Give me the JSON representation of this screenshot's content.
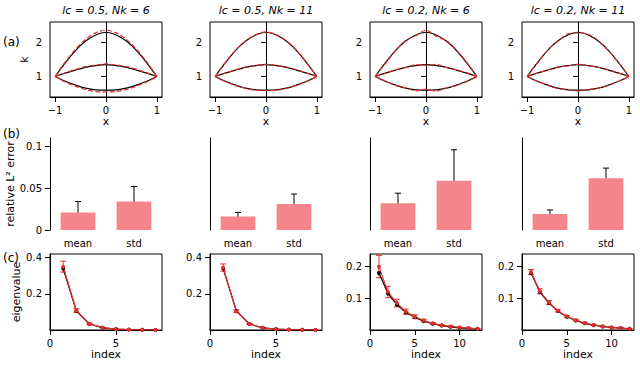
{
  "chart_data": [
    {
      "type": "line",
      "title": "lc = 0.5, Nk = 6",
      "annotations": [
        "(a)"
      ],
      "x_label": "x",
      "y_label": "k",
      "x": [
        -1,
        -0.8,
        -0.6,
        -0.4,
        -0.2,
        0,
        0.2,
        0.4,
        0.6,
        0.8,
        1
      ],
      "xlim": [
        -1.1,
        1.1
      ],
      "xticks": [
        {
          "value": -1,
          "label": "−1"
        },
        0,
        1
      ],
      "ylim": [
        0.4,
        2.6
      ],
      "yticks": [
        1,
        2
      ],
      "series": [
        {
          "color": "#000000",
          "line_style": "solid",
          "marker": "none",
          "values": [
            1,
            1.4,
            1.76,
            2.04,
            2.22,
            2.3,
            2.22,
            2.04,
            1.76,
            1.4,
            1
          ]
        },
        {
          "color": "#000000",
          "line_style": "solid",
          "marker": "none",
          "values": [
            1,
            1.1,
            1.19,
            1.27,
            1.32,
            1.35,
            1.32,
            1.27,
            1.19,
            1.1,
            1
          ]
        },
        {
          "color": "#000000",
          "line_style": "solid",
          "marker": "none",
          "values": [
            1,
            0.86,
            0.75,
            0.66,
            0.61,
            0.6,
            0.61,
            0.66,
            0.75,
            0.86,
            1
          ]
        },
        {
          "color": "#e6302b",
          "line_style": "dashed",
          "marker": "none",
          "values": [
            1,
            1.43,
            1.8,
            2.09,
            2.28,
            2.36,
            2.28,
            2.09,
            1.8,
            1.43,
            1
          ]
        },
        {
          "color": "#e6302b",
          "line_style": "dashed",
          "marker": "none",
          "values": [
            1,
            1.11,
            1.21,
            1.29,
            1.34,
            1.37,
            1.34,
            1.29,
            1.21,
            1.11,
            1
          ]
        },
        {
          "color": "#e6302b",
          "line_style": "dashed",
          "marker": "none",
          "values": [
            1,
            0.84,
            0.72,
            0.62,
            0.56,
            0.55,
            0.56,
            0.62,
            0.72,
            0.84,
            1
          ]
        }
      ]
    },
    {
      "type": "line",
      "title": "lc = 0.5, Nk = 11",
      "x_label": "x",
      "x": [
        -1,
        -0.8,
        -0.6,
        -0.4,
        -0.2,
        0,
        0.2,
        0.4,
        0.6,
        0.8,
        1
      ],
      "xlim": [
        -1.1,
        1.1
      ],
      "xticks": [
        {
          "value": -1,
          "label": "−1"
        },
        0,
        1
      ],
      "ylim": [
        0.4,
        2.6
      ],
      "yticks": [
        1,
        2
      ],
      "series": [
        {
          "color": "#000000",
          "line_style": "solid",
          "marker": "none",
          "values": [
            1,
            1.4,
            1.76,
            2.04,
            2.22,
            2.3,
            2.22,
            2.04,
            1.76,
            1.4,
            1
          ]
        },
        {
          "color": "#000000",
          "line_style": "solid",
          "marker": "none",
          "values": [
            1,
            1.1,
            1.19,
            1.27,
            1.32,
            1.35,
            1.32,
            1.27,
            1.19,
            1.1,
            1
          ]
        },
        {
          "color": "#000000",
          "line_style": "solid",
          "marker": "none",
          "values": [
            1,
            0.86,
            0.75,
            0.66,
            0.61,
            0.6,
            0.61,
            0.66,
            0.75,
            0.86,
            1
          ]
        },
        {
          "color": "#e6302b",
          "line_style": "dashed",
          "marker": "none",
          "values": [
            1,
            1.41,
            1.77,
            2.05,
            2.23,
            2.31,
            2.23,
            2.05,
            1.77,
            1.41,
            1
          ]
        },
        {
          "color": "#e6302b",
          "line_style": "dashed",
          "marker": "none",
          "values": [
            1,
            1.1,
            1.2,
            1.28,
            1.33,
            1.36,
            1.33,
            1.28,
            1.2,
            1.1,
            1
          ]
        },
        {
          "color": "#e6302b",
          "line_style": "dashed",
          "marker": "none",
          "values": [
            1,
            0.85,
            0.74,
            0.65,
            0.6,
            0.59,
            0.6,
            0.65,
            0.74,
            0.85,
            1
          ]
        }
      ]
    },
    {
      "type": "line",
      "title": "lc = 0.2, Nk = 6",
      "x_label": "x",
      "x": [
        -1,
        -0.8,
        -0.6,
        -0.4,
        -0.2,
        0,
        0.2,
        0.4,
        0.6,
        0.8,
        1
      ],
      "xlim": [
        -1.1,
        1.1
      ],
      "xticks": [
        {
          "value": -1,
          "label": "−1"
        },
        0,
        1
      ],
      "ylim": [
        0.4,
        2.6
      ],
      "yticks": [
        1,
        2
      ],
      "series": [
        {
          "color": "#000000",
          "line_style": "solid",
          "marker": "none",
          "values": [
            1,
            1.4,
            1.76,
            2.04,
            2.22,
            2.3,
            2.22,
            2.04,
            1.76,
            1.4,
            1
          ]
        },
        {
          "color": "#000000",
          "line_style": "solid",
          "marker": "none",
          "values": [
            1,
            1.1,
            1.19,
            1.27,
            1.32,
            1.35,
            1.32,
            1.27,
            1.19,
            1.1,
            1
          ]
        },
        {
          "color": "#000000",
          "line_style": "solid",
          "marker": "none",
          "values": [
            1,
            0.86,
            0.75,
            0.66,
            0.61,
            0.6,
            0.61,
            0.66,
            0.75,
            0.86,
            1
          ]
        },
        {
          "color": "#e6302b",
          "line_style": "dashed",
          "marker": "none",
          "values": [
            1,
            1.38,
            1.75,
            2.06,
            2.2,
            2.36,
            2.18,
            2.05,
            1.78,
            1.42,
            1
          ]
        },
        {
          "color": "#e6302b",
          "line_style": "dashed",
          "marker": "none",
          "values": [
            1,
            1.09,
            1.2,
            1.26,
            1.35,
            1.33,
            1.36,
            1.26,
            1.2,
            1.11,
            1
          ]
        },
        {
          "color": "#e6302b",
          "line_style": "dashed",
          "marker": "none",
          "values": [
            1,
            0.87,
            0.74,
            0.67,
            0.58,
            0.63,
            0.57,
            0.67,
            0.74,
            0.85,
            1
          ]
        }
      ]
    },
    {
      "type": "line",
      "title": "lc = 0.2, Nk = 11",
      "x_label": "x",
      "x": [
        -1,
        -0.8,
        -0.6,
        -0.4,
        -0.2,
        0,
        0.2,
        0.4,
        0.6,
        0.8,
        1
      ],
      "xlim": [
        -1.1,
        1.1
      ],
      "xticks": [
        {
          "value": -1,
          "label": "−1"
        },
        0,
        1
      ],
      "ylim": [
        0.4,
        2.6
      ],
      "yticks": [
        1,
        2
      ],
      "series": [
        {
          "color": "#000000",
          "line_style": "solid",
          "marker": "none",
          "values": [
            1,
            1.4,
            1.76,
            2.04,
            2.22,
            2.3,
            2.22,
            2.04,
            1.76,
            1.4,
            1
          ]
        },
        {
          "color": "#000000",
          "line_style": "solid",
          "marker": "none",
          "values": [
            1,
            1.1,
            1.19,
            1.27,
            1.32,
            1.35,
            1.32,
            1.27,
            1.19,
            1.1,
            1
          ]
        },
        {
          "color": "#000000",
          "line_style": "solid",
          "marker": "none",
          "values": [
            1,
            0.86,
            0.75,
            0.66,
            0.61,
            0.6,
            0.61,
            0.66,
            0.75,
            0.86,
            1
          ]
        },
        {
          "color": "#e6302b",
          "line_style": "dashed",
          "marker": "none",
          "values": [
            1,
            1.39,
            1.77,
            2.03,
            2.25,
            2.28,
            2.24,
            2.05,
            1.75,
            1.41,
            1
          ]
        },
        {
          "color": "#e6302b",
          "line_style": "dashed",
          "marker": "none",
          "values": [
            1,
            1.1,
            1.19,
            1.28,
            1.31,
            1.36,
            1.32,
            1.27,
            1.2,
            1.1,
            1
          ]
        },
        {
          "color": "#e6302b",
          "line_style": "dashed",
          "marker": "none",
          "values": [
            1,
            0.86,
            0.76,
            0.65,
            0.62,
            0.58,
            0.62,
            0.66,
            0.74,
            0.86,
            1
          ]
        }
      ]
    },
    {
      "type": "bar",
      "annotations": [
        "(b)"
      ],
      "y_label": "relative L² error",
      "categories": [
        "mean",
        "std"
      ],
      "values": [
        0.021,
        0.034
      ],
      "errors": [
        0.013,
        0.018
      ],
      "color": "#f4858a",
      "ylim": [
        0,
        0.11
      ],
      "yticks": [
        0,
        0.05,
        0.1
      ]
    },
    {
      "type": "bar",
      "categories": [
        "mean",
        "std"
      ],
      "values": [
        0.016,
        0.031
      ],
      "errors": [
        0.005,
        0.012
      ],
      "color": "#f4858a",
      "ylim": [
        0,
        0.11
      ],
      "tick_labels": "x"
    },
    {
      "type": "bar",
      "categories": [
        "mean",
        "std"
      ],
      "values": [
        0.032,
        0.059
      ],
      "errors": [
        0.012,
        0.037
      ],
      "color": "#f4858a",
      "ylim": [
        0,
        0.11
      ],
      "tick_labels": "x"
    },
    {
      "type": "bar",
      "categories": [
        "mean",
        "std"
      ],
      "values": [
        0.019,
        0.062
      ],
      "errors": [
        0.005,
        0.012
      ],
      "color": "#f4858a",
      "ylim": [
        0,
        0.11
      ],
      "tick_labels": "x"
    },
    {
      "type": "line",
      "annotations": [
        "(c)"
      ],
      "x_label": "index",
      "y_label": "eigenvalue",
      "x": [
        1,
        2,
        3,
        4,
        5,
        6,
        7,
        8
      ],
      "xlim": [
        0,
        8.5
      ],
      "xticks": [
        0,
        5
      ],
      "ylim": [
        0,
        0.42
      ],
      "yticks": [
        0.2,
        0.4
      ],
      "series": [
        {
          "color": "#000000",
          "line_style": "solid",
          "marker": "circle",
          "values": [
            0.34,
            0.105,
            0.033,
            0.012,
            0.005,
            0.002,
            0.001,
            0.0005
          ]
        },
        {
          "color": "#e6302b",
          "line_style": "solid",
          "marker": "circle",
          "values": [
            0.35,
            0.108,
            0.034,
            0.013,
            0.005,
            0.002,
            0.001,
            0.0005
          ],
          "errors": [
            0.03,
            0.01,
            0.004,
            0.002,
            0.001,
            0.0005,
            0.0003,
            0.0002
          ]
        }
      ]
    },
    {
      "type": "line",
      "x_label": "index",
      "x": [
        1,
        2,
        3,
        4,
        5,
        6,
        7,
        8
      ],
      "xlim": [
        0,
        8.5
      ],
      "xticks": [
        0,
        5
      ],
      "ylim": [
        0,
        0.42
      ],
      "yticks": [
        0.2,
        0.4
      ],
      "series": [
        {
          "color": "#000000",
          "line_style": "solid",
          "marker": "circle",
          "values": [
            0.34,
            0.105,
            0.033,
            0.012,
            0.005,
            0.002,
            0.001,
            0.0005
          ]
        },
        {
          "color": "#e6302b",
          "line_style": "solid",
          "marker": "circle",
          "values": [
            0.345,
            0.104,
            0.033,
            0.012,
            0.005,
            0.002,
            0.001,
            0.0005
          ],
          "errors": [
            0.02,
            0.008,
            0.003,
            0.0015,
            0.001,
            0.0005,
            0.0003,
            0.0002
          ]
        }
      ]
    },
    {
      "type": "line",
      "x_label": "index",
      "x": [
        1,
        2,
        3,
        4,
        5,
        6,
        7,
        8,
        9,
        10,
        11,
        12
      ],
      "xlim": [
        0,
        12.5
      ],
      "xticks": [
        0,
        5,
        10
      ],
      "ylim": [
        0,
        0.24
      ],
      "yticks": [
        0.1,
        0.2
      ],
      "series": [
        {
          "color": "#000000",
          "line_style": "solid",
          "marker": "circle",
          "values": [
            0.18,
            0.115,
            0.08,
            0.055,
            0.04,
            0.028,
            0.02,
            0.014,
            0.01,
            0.007,
            0.005,
            0.003
          ]
        },
        {
          "color": "#e6302b",
          "line_style": "solid",
          "marker": "circle",
          "values": [
            0.2,
            0.12,
            0.085,
            0.058,
            0.042,
            0.03,
            0.021,
            0.015,
            0.011,
            0.008,
            0.006,
            0.004
          ],
          "errors": [
            0.035,
            0.018,
            0.012,
            0.008,
            0.006,
            0.004,
            0.003,
            0.002,
            0.002,
            0.001,
            0.001,
            0.001
          ]
        }
      ]
    },
    {
      "type": "line",
      "x_label": "index",
      "x": [
        1,
        2,
        3,
        4,
        5,
        6,
        7,
        8,
        9,
        10,
        11,
        12
      ],
      "xlim": [
        0,
        12.5
      ],
      "xticks": [
        0,
        5,
        10
      ],
      "ylim": [
        0,
        0.24
      ],
      "yticks": [
        0.1,
        0.2
      ],
      "series": [
        {
          "color": "#000000",
          "line_style": "solid",
          "marker": "circle",
          "values": [
            0.18,
            0.12,
            0.085,
            0.06,
            0.042,
            0.03,
            0.021,
            0.015,
            0.011,
            0.008,
            0.006,
            0.004
          ]
        },
        {
          "color": "#e6302b",
          "line_style": "solid",
          "marker": "circle",
          "values": [
            0.183,
            0.122,
            0.087,
            0.061,
            0.043,
            0.031,
            0.022,
            0.016,
            0.011,
            0.008,
            0.006,
            0.004
          ],
          "errors": [
            0.008,
            0.008,
            0.006,
            0.004,
            0.003,
            0.002,
            0.002,
            0.001,
            0.001,
            0.001,
            0.001,
            0.001
          ]
        }
      ]
    }
  ]
}
